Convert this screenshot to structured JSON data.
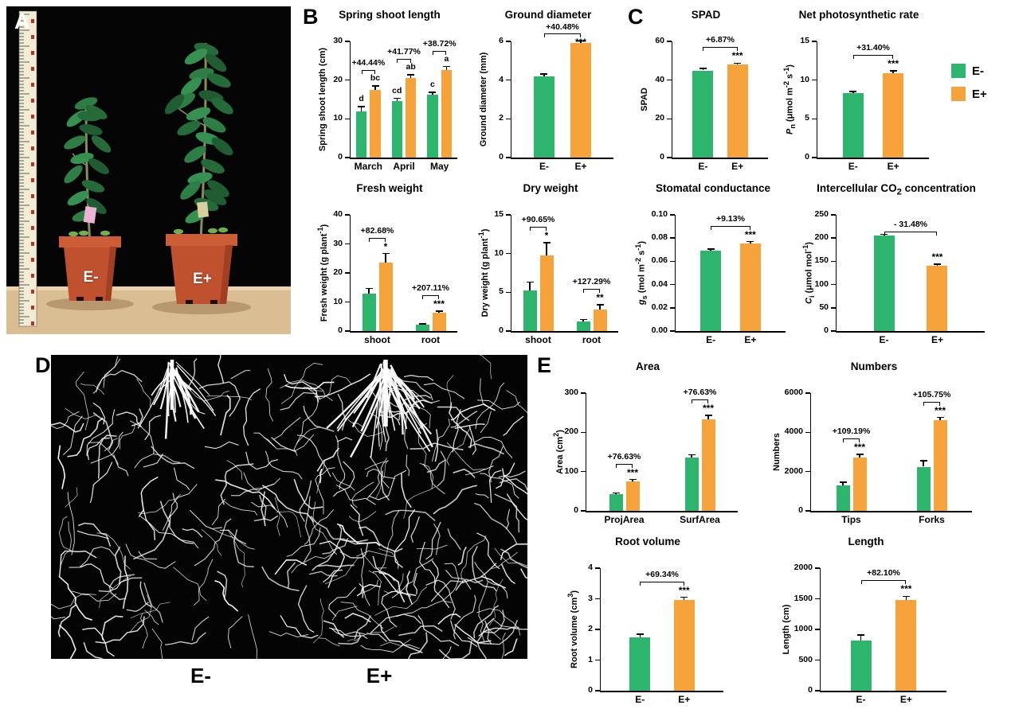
{
  "colors": {
    "e_minus": "#2db56e",
    "e_plus": "#f6a33c",
    "axis": "#000000"
  },
  "legend": {
    "items": [
      {
        "label": "E-",
        "color_key": "e_minus"
      },
      {
        "label": "E+",
        "color_key": "e_plus"
      }
    ]
  },
  "panels": {
    "a": {
      "label": "A",
      "pot_labels": [
        "E-",
        "E+"
      ]
    },
    "b": {
      "label": "B"
    },
    "c": {
      "label": "C"
    },
    "d": {
      "label": "D",
      "image_labels": [
        "E-",
        "E+"
      ]
    },
    "e": {
      "label": "E"
    }
  },
  "chart_data": [
    {
      "key": "spring_shoot_length",
      "panel": "B",
      "type": "bar",
      "title": "Spring shoot length",
      "ylabel": "Spring shoot length (cm)",
      "ylim": [
        0,
        30
      ],
      "yticks": [
        "0",
        "10",
        "20",
        "30"
      ],
      "series": [
        "E-",
        "E+"
      ],
      "groups": [
        {
          "label": "March",
          "annotation": "+44.44%",
          "bars": [
            {
              "series": "E-",
              "value": 12.0,
              "err": 1.2,
              "letter": "d"
            },
            {
              "series": "E+",
              "value": 17.5,
              "err": 1.0,
              "letter": "bc"
            }
          ]
        },
        {
          "label": "April",
          "annotation": "+41.77%",
          "bars": [
            {
              "series": "E-",
              "value": 14.5,
              "err": 0.8,
              "letter": "cd"
            },
            {
              "series": "E+",
              "value": 20.5,
              "err": 0.9,
              "letter": "ab"
            }
          ]
        },
        {
          "label": "May",
          "annotation": "+38.72%",
          "bars": [
            {
              "series": "E-",
              "value": 16.3,
              "err": 0.5,
              "letter": "c"
            },
            {
              "series": "E+",
              "value": 22.6,
              "err": 0.9,
              "letter": "a"
            }
          ]
        }
      ]
    },
    {
      "key": "ground_diameter",
      "panel": "B",
      "type": "bar",
      "title": "Ground diameter",
      "ylabel": "Ground diameter (mm)",
      "ylim": [
        0,
        6
      ],
      "yticks": [
        "0",
        "2",
        "4",
        "6"
      ],
      "series": [
        "E-",
        "E+"
      ],
      "groups": [
        {
          "label": "",
          "annotation": "+40.48%",
          "bars": [
            {
              "series": "E-",
              "xlabel": "E-",
              "value": 4.2,
              "err": 0.12
            },
            {
              "series": "E+",
              "xlabel": "E+",
              "value": 5.9,
              "err": 0.12,
              "stars": "***"
            }
          ]
        }
      ]
    },
    {
      "key": "fresh_weight",
      "panel": "B",
      "type": "bar",
      "title": "Fresh weight",
      "ylabel": "Fresh weight (g plant<sup>-1</sup>)",
      "ylim": [
        0,
        40
      ],
      "yticks": [
        "0",
        "10",
        "20",
        "30",
        "40"
      ],
      "series": [
        "E-",
        "E+"
      ],
      "groups": [
        {
          "label": "shoot",
          "annotation": "+82.68%",
          "bars": [
            {
              "series": "E-",
              "value": 13.0,
              "err": 1.6
            },
            {
              "series": "E+",
              "value": 23.5,
              "err": 3.2,
              "stars": "*"
            }
          ]
        },
        {
          "label": "root",
          "annotation": "+207.11%",
          "bars": [
            {
              "series": "E-",
              "value": 2.1,
              "err": 0.4
            },
            {
              "series": "E+",
              "value": 6.4,
              "err": 0.4,
              "stars": "***"
            }
          ]
        }
      ]
    },
    {
      "key": "dry_weight",
      "panel": "B",
      "type": "bar",
      "title": "Dry weight",
      "ylabel": "Dry weight (g plant<sup>-1</sup>)",
      "ylim": [
        0,
        15
      ],
      "yticks": [
        "0",
        "5",
        "10",
        "15"
      ],
      "series": [
        "E-",
        "E+"
      ],
      "groups": [
        {
          "label": "shoot",
          "annotation": "+90.65%",
          "bars": [
            {
              "series": "E-",
              "value": 5.2,
              "err": 1.1
            },
            {
              "series": "E+",
              "value": 9.8,
              "err": 1.6,
              "stars": "*"
            }
          ]
        },
        {
          "label": "root",
          "annotation": "+127.29%",
          "bars": [
            {
              "series": "E-",
              "value": 1.2,
              "err": 0.3
            },
            {
              "series": "E+",
              "value": 2.8,
              "err": 0.6,
              "stars": "**"
            }
          ]
        }
      ]
    },
    {
      "key": "spad",
      "panel": "C",
      "type": "bar",
      "title": "SPAD",
      "ylabel": "SPAD",
      "ylim": [
        0,
        60
      ],
      "yticks": [
        "0",
        "20",
        "40",
        "60"
      ],
      "series": [
        "E-",
        "E+"
      ],
      "groups": [
        {
          "label": "",
          "annotation": "+6.87%",
          "bars": [
            {
              "series": "E-",
              "xlabel": "E-",
              "value": 45.0,
              "err": 1.0
            },
            {
              "series": "E+",
              "xlabel": "E+",
              "value": 48.0,
              "err": 0.8,
              "stars": "***"
            }
          ]
        }
      ]
    },
    {
      "key": "net_photosynthetic_rate",
      "panel": "C",
      "type": "bar",
      "title": "Net photosynthetic rate",
      "ylabel": "<i>P</i><sub>n</sub> (μmol m<sup>-2</sup> s<sup>-1</sup>)",
      "ylim": [
        0,
        15
      ],
      "yticks": [
        "0",
        "5",
        "10",
        "15"
      ],
      "series": [
        "E-",
        "E+"
      ],
      "groups": [
        {
          "label": "",
          "annotation": "+31.40%",
          "bars": [
            {
              "series": "E-",
              "xlabel": "E-",
              "value": 8.3,
              "err": 0.25
            },
            {
              "series": "E+",
              "xlabel": "E+",
              "value": 10.9,
              "err": 0.3,
              "stars": "***"
            }
          ]
        }
      ]
    },
    {
      "key": "stomatal_conductance",
      "panel": "C",
      "type": "bar",
      "title": "Stomatal conductance",
      "ylabel": "<i>g</i><sub>s</sub> (mol m<sup>-2</sup> s<sup>-1</sup>)",
      "ylim": [
        0,
        0.1
      ],
      "yticks": [
        "0.00",
        "0.02",
        "0.04",
        "0.06",
        "0.08",
        "0.10"
      ],
      "series": [
        "E-",
        "E+"
      ],
      "groups": [
        {
          "label": "",
          "annotation": "+9.13%",
          "bars": [
            {
              "series": "E-",
              "xlabel": "E-",
              "value": 0.069,
              "err": 0.0015
            },
            {
              "series": "E+",
              "xlabel": "E+",
              "value": 0.0755,
              "err": 0.0015,
              "stars": "***"
            }
          ]
        }
      ]
    },
    {
      "key": "intercellular_co2",
      "panel": "C",
      "type": "bar",
      "title": "Intercellular CO<sub>2</sub> concentration",
      "ylabel": "<i>C</i><sub>i</sub> (μmol mol<sup>-1</sup>)",
      "ylim": [
        0,
        250
      ],
      "yticks": [
        "0",
        "50",
        "100",
        "150",
        "200",
        "250"
      ],
      "series": [
        "E-",
        "E+"
      ],
      "groups": [
        {
          "label": "",
          "annotation": "- 31.48%",
          "bars": [
            {
              "series": "E-",
              "xlabel": "E-",
              "value": 205.0,
              "err": 3.0
            },
            {
              "series": "E+",
              "xlabel": "E+",
              "value": 140.0,
              "err": 4.0,
              "stars": "***"
            }
          ]
        }
      ]
    },
    {
      "key": "area",
      "panel": "E",
      "type": "bar",
      "title": "Area",
      "ylabel": "Area (cm<sup>2</sup>)",
      "ylim": [
        0,
        300
      ],
      "yticks": [
        "0",
        "100",
        "200",
        "300"
      ],
      "series": [
        "E-",
        "E+"
      ],
      "groups": [
        {
          "label": "ProjArea",
          "annotation": "+76.63%",
          "bars": [
            {
              "series": "E-",
              "value": 42.0,
              "err": 4.0
            },
            {
              "series": "E+",
              "value": 75.0,
              "err": 5.0,
              "stars": "***"
            }
          ]
        },
        {
          "label": "SurfArea",
          "annotation": "+76.63%",
          "bars": [
            {
              "series": "E-",
              "value": 135.0,
              "err": 8.0
            },
            {
              "series": "E+",
              "value": 233.0,
              "err": 10.0,
              "stars": "***"
            }
          ]
        }
      ]
    },
    {
      "key": "numbers",
      "panel": "E",
      "type": "bar",
      "title": "Numbers",
      "ylabel": "Numbers",
      "ylim": [
        0,
        6000
      ],
      "yticks": [
        "0",
        "2000",
        "4000",
        "6000"
      ],
      "series": [
        "E-",
        "E+"
      ],
      "groups": [
        {
          "label": "Tips",
          "annotation": "+109.19%",
          "bars": [
            {
              "series": "E-",
              "value": 1300,
              "err": 150
            },
            {
              "series": "E+",
              "value": 2720,
              "err": 160,
              "stars": "***"
            }
          ]
        },
        {
          "label": "Forks",
          "annotation": "+105.75%",
          "bars": [
            {
              "series": "E-",
              "value": 2250,
              "err": 300
            },
            {
              "series": "E+",
              "value": 4630,
              "err": 130,
              "stars": "***"
            }
          ]
        }
      ]
    },
    {
      "key": "root_volume",
      "panel": "E",
      "type": "bar",
      "title": "Root volume",
      "ylabel": "Root volume (cm<sup>3</sup>)",
      "ylim": [
        0,
        4
      ],
      "yticks": [
        "0",
        "1",
        "2",
        "3",
        "4"
      ],
      "series": [
        "E-",
        "E+"
      ],
      "groups": [
        {
          "label": "",
          "annotation": "+69.34%",
          "bars": [
            {
              "series": "E-",
              "xlabel": "E-",
              "value": 1.75,
              "err": 0.1
            },
            {
              "series": "E+",
              "xlabel": "E+",
              "value": 2.95,
              "err": 0.1,
              "stars": "***"
            }
          ]
        }
      ]
    },
    {
      "key": "length",
      "panel": "E",
      "type": "bar",
      "title": "Length",
      "ylabel": "Length (cm)",
      "ylim": [
        0,
        2000
      ],
      "yticks": [
        "0",
        "500",
        "1000",
        "1500",
        "2000"
      ],
      "series": [
        "E-",
        "E+"
      ],
      "groups": [
        {
          "label": "",
          "annotation": "+82.10%",
          "bars": [
            {
              "series": "E-",
              "xlabel": "E-",
              "value": 820,
              "err": 90
            },
            {
              "series": "E+",
              "xlabel": "E+",
              "value": 1480,
              "err": 60,
              "stars": "***"
            }
          ]
        }
      ]
    }
  ]
}
